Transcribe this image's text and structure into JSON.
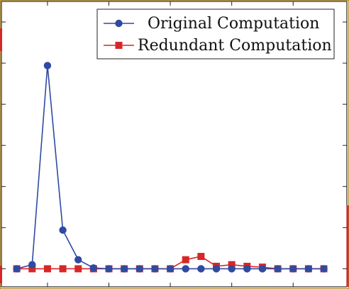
{
  "chart_data": {
    "type": "line",
    "title": "",
    "xlabel": "",
    "ylabel": "",
    "x": [
      1,
      2,
      3,
      4,
      5,
      6,
      7,
      8,
      9,
      10,
      11,
      12,
      13,
      14,
      15,
      16,
      17,
      18,
      19,
      20,
      21
    ],
    "xlim": [
      0,
      22.5
    ],
    "ylim": [
      -2.2,
      32.5
    ],
    "y_ticks": [
      0,
      5,
      10,
      15,
      20,
      25,
      30
    ],
    "x_ticks": [
      3,
      7,
      11,
      15,
      19
    ],
    "grid": false,
    "legend_position": "top-right",
    "series": [
      {
        "name": "Original Computation",
        "color": "#2f4aa0",
        "marker": "circle",
        "values": [
          0,
          0.5,
          24.7,
          4.7,
          1.1,
          0.1,
          0,
          0,
          0,
          0,
          0,
          0,
          0,
          0,
          0,
          0,
          0,
          0,
          0,
          0,
          0
        ]
      },
      {
        "name": "Redundant Computation",
        "color": "#d62728",
        "marker": "square",
        "values": [
          0,
          0,
          0,
          0,
          0,
          0,
          0,
          0,
          0,
          0,
          0,
          1.1,
          1.5,
          0.3,
          0.5,
          0.3,
          0.2,
          0,
          0,
          0,
          0
        ]
      }
    ]
  }
}
